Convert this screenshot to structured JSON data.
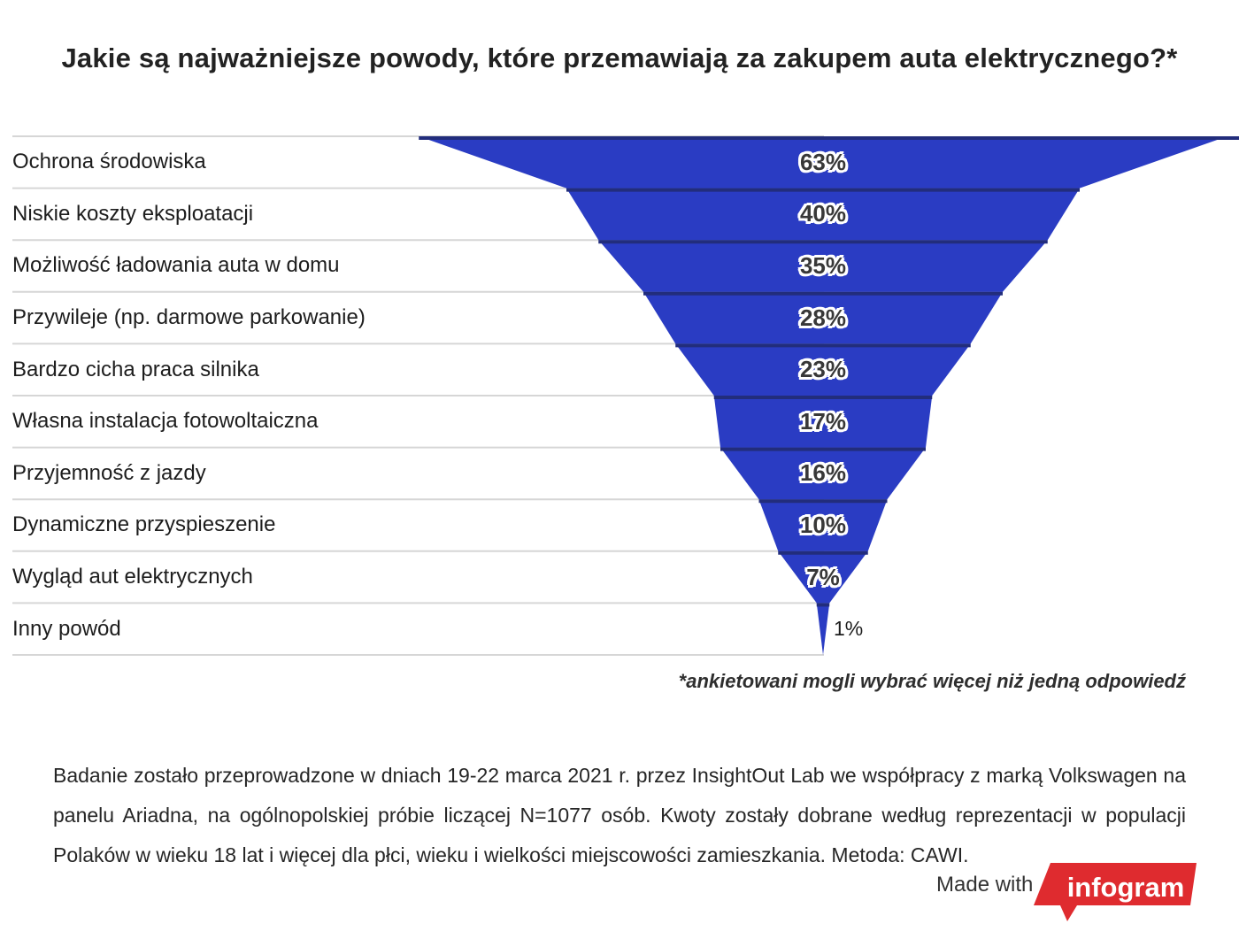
{
  "title": "Jakie są najważniejsze powody, które przemawiają za zakupem auta elektrycznego?*",
  "chart_data": {
    "type": "funnel",
    "categories": [
      "Ochrona środowiska",
      "Niskie koszty eksploatacji",
      "Możliwość ładowania auta w domu",
      "Przywileje (np. darmowe parkowanie)",
      "Bardzo cicha praca silnika",
      "Własna instalacja fotowoltaiczna",
      "Przyjemność z jazdy",
      "Dynamiczne przyspieszenie",
      "Wygląd aut elektrycznych",
      "Inny powód"
    ],
    "values": [
      63,
      40,
      35,
      28,
      23,
      17,
      16,
      10,
      7,
      1
    ],
    "unit": "%",
    "value_labels": [
      "63%",
      "40%",
      "35%",
      "28%",
      "23%",
      "17%",
      "16%",
      "10%",
      "7%",
      "1%"
    ],
    "footnote": "*ankietowani mogli wybrać więcej niż jedną odpowiedź",
    "colors": {
      "funnel_fill": "#2a3cc3",
      "funnel_edge": "#222d7c",
      "gridline": "#d6d6d6"
    },
    "grid": "horizontal lines on",
    "legend": "none"
  },
  "description": "Badanie zostało przeprowadzone w dniach 19-22 marca 2021 r. przez InsightOut Lab we współpracy z marką Volkswagen na panelu Ariadna, na ogólnopolskiej próbie liczącej N=1077 osób. Kwoty zostały dobrane według reprezentacji w populacji Polaków w wieku 18 lat i więcej dla płci, wieku i wielkości miejscowości zamieszkania. Metoda: CAWI.",
  "credit": {
    "made_with": "Made with",
    "brand": "infogram",
    "brand_color": "#df2b2f"
  }
}
